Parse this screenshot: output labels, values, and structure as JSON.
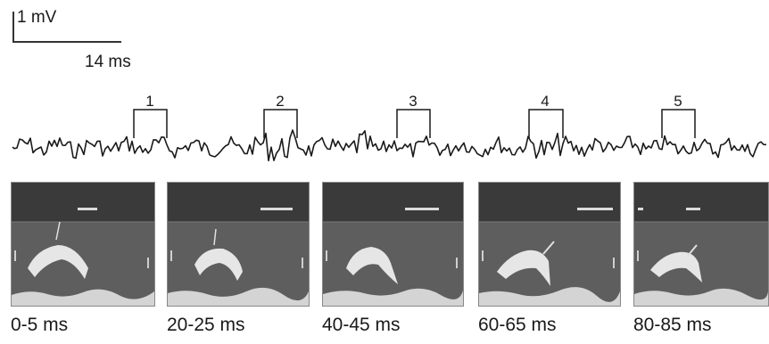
{
  "scale_bar": {
    "voltage": "1 mV",
    "time": "14 ms"
  },
  "windows": [
    {
      "label": "1"
    },
    {
      "label": "2"
    },
    {
      "label": "3"
    },
    {
      "label": "4"
    },
    {
      "label": "5"
    }
  ],
  "frames": [
    {
      "caption": "0-5 ms"
    },
    {
      "caption": "20-25 ms"
    },
    {
      "caption": "40-45 ms"
    },
    {
      "caption": "60-65 ms"
    },
    {
      "caption": "80-85 ms"
    }
  ],
  "colors": {
    "trace": "#1a1a1a",
    "frame_top": "#3a3a3a",
    "frame_bottom": "#5e5e5e",
    "subject": "#e6e6e6"
  }
}
